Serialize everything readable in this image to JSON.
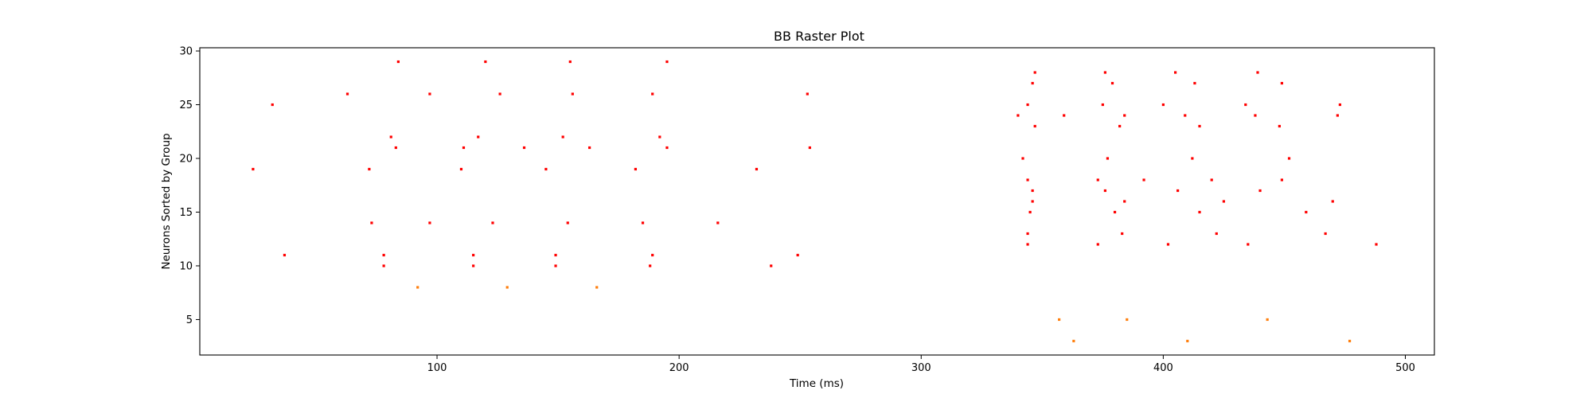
{
  "chart_data": {
    "type": "scatter",
    "title": "BB Raster Plot",
    "xlabel": "Time (ms)",
    "ylabel": "Neurons Sorted by Group",
    "xlim": [
      2,
      512
    ],
    "ylim": [
      1.7,
      30.3
    ],
    "xticks": [
      100,
      200,
      300,
      400,
      500
    ],
    "yticks": [
      5,
      10,
      15,
      20,
      25,
      30
    ],
    "grid": false,
    "series": [
      {
        "color": "#ff0000",
        "points": [
          [
            24,
            19
          ],
          [
            32,
            25
          ],
          [
            37,
            11
          ],
          [
            63,
            26
          ],
          [
            72,
            19
          ],
          [
            73,
            14
          ],
          [
            78,
            11
          ],
          [
            78,
            10
          ],
          [
            81,
            22
          ],
          [
            83,
            21
          ],
          [
            84,
            29
          ],
          [
            97,
            26
          ],
          [
            97,
            14
          ],
          [
            110,
            19
          ],
          [
            111,
            21
          ],
          [
            115,
            11
          ],
          [
            115,
            10
          ],
          [
            117,
            22
          ],
          [
            120,
            29
          ],
          [
            123,
            14
          ],
          [
            126,
            26
          ],
          [
            136,
            21
          ],
          [
            145,
            19
          ],
          [
            149,
            11
          ],
          [
            149,
            10
          ],
          [
            152,
            22
          ],
          [
            154,
            14
          ],
          [
            155,
            29
          ],
          [
            156,
            26
          ],
          [
            163,
            21
          ],
          [
            182,
            19
          ],
          [
            185,
            14
          ],
          [
            188,
            10
          ],
          [
            189,
            11
          ],
          [
            189,
            26
          ],
          [
            192,
            22
          ],
          [
            195,
            21
          ],
          [
            195,
            29
          ],
          [
            216,
            14
          ],
          [
            232,
            19
          ],
          [
            238,
            10
          ],
          [
            249,
            11
          ],
          [
            253,
            26
          ],
          [
            254,
            21
          ],
          [
            340,
            24
          ],
          [
            342,
            20
          ],
          [
            344,
            25
          ],
          [
            344,
            13
          ],
          [
            344,
            12
          ],
          [
            344,
            18
          ],
          [
            345,
            15
          ],
          [
            346,
            16
          ],
          [
            346,
            17
          ],
          [
            346,
            27
          ],
          [
            347,
            23
          ],
          [
            347,
            28
          ],
          [
            359,
            24
          ],
          [
            373,
            12
          ],
          [
            373,
            18
          ],
          [
            375,
            25
          ],
          [
            376,
            28
          ],
          [
            376,
            17
          ],
          [
            377,
            20
          ],
          [
            379,
            27
          ],
          [
            380,
            15
          ],
          [
            382,
            23
          ],
          [
            383,
            13
          ],
          [
            384,
            24
          ],
          [
            384,
            16
          ],
          [
            392,
            18
          ],
          [
            400,
            25
          ],
          [
            402,
            12
          ],
          [
            405,
            28
          ],
          [
            406,
            17
          ],
          [
            409,
            24
          ],
          [
            412,
            20
          ],
          [
            413,
            27
          ],
          [
            415,
            15
          ],
          [
            415,
            23
          ],
          [
            420,
            18
          ],
          [
            422,
            13
          ],
          [
            425,
            16
          ],
          [
            434,
            25
          ],
          [
            435,
            12
          ],
          [
            438,
            24
          ],
          [
            439,
            28
          ],
          [
            440,
            17
          ],
          [
            448,
            23
          ],
          [
            449,
            27
          ],
          [
            449,
            18
          ],
          [
            452,
            20
          ],
          [
            459,
            15
          ],
          [
            467,
            13
          ],
          [
            470,
            16
          ],
          [
            472,
            24
          ],
          [
            473,
            25
          ],
          [
            488,
            12
          ]
        ]
      },
      {
        "color": "#ff7f0e",
        "points": [
          [
            92,
            8
          ],
          [
            129,
            8
          ],
          [
            166,
            8
          ],
          [
            357,
            5
          ],
          [
            363,
            3
          ],
          [
            385,
            5
          ],
          [
            410,
            3
          ],
          [
            443,
            5
          ],
          [
            477,
            3
          ]
        ]
      }
    ]
  }
}
